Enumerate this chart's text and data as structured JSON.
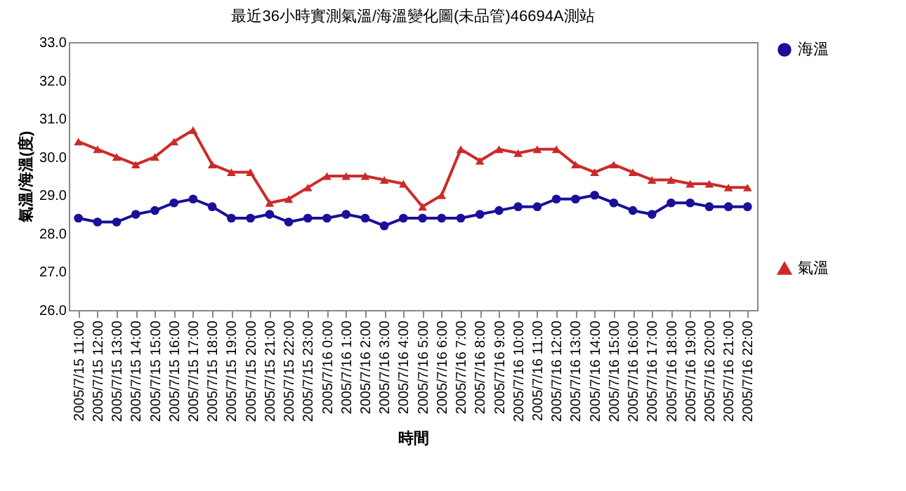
{
  "chart_data": {
    "type": "line",
    "title": "最近36小時實測氣溫/海溫變化圖(未品管)46694A測站",
    "xlabel": "時間",
    "ylabel": "氣溫/海溫(度)",
    "categories": [
      "2005/7/15 11:00",
      "2005/7/15 12:00",
      "2005/7/15 13:00",
      "2005/7/15 14:00",
      "2005/7/15 15:00",
      "2005/7/15 16:00",
      "2005/7/15 17:00",
      "2005/7/15 18:00",
      "2005/7/15 19:00",
      "2005/7/15 20:00",
      "2005/7/15 21:00",
      "2005/7/15 22:00",
      "2005/7/15 23:00",
      "2005/7/16 0:00",
      "2005/7/16 1:00",
      "2005/7/16 2:00",
      "2005/7/16 3:00",
      "2005/7/16 4:00",
      "2005/7/16 5:00",
      "2005/7/16 6:00",
      "2005/7/16 7:00",
      "2005/7/16 8:00",
      "2005/7/16 9:00",
      "2005/7/16 10:00",
      "2005/7/16 11:00",
      "2005/7/16 12:00",
      "2005/7/16 13:00",
      "2005/7/16 14:00",
      "2005/7/16 15:00",
      "2005/7/16 16:00",
      "2005/7/16 17:00",
      "2005/7/16 18:00",
      "2005/7/16 19:00",
      "2005/7/16 20:00",
      "2005/7/16 21:00",
      "2005/7/16 22:00"
    ],
    "series": [
      {
        "name": "海溫",
        "color": "#1a0f99",
        "marker": "circle",
        "values": [
          28.4,
          28.3,
          28.3,
          28.5,
          28.6,
          28.8,
          28.9,
          28.7,
          28.4,
          28.4,
          28.5,
          28.3,
          28.4,
          28.4,
          28.5,
          28.4,
          28.2,
          28.4,
          28.4,
          28.4,
          28.4,
          28.5,
          28.6,
          28.7,
          28.7,
          28.9,
          28.9,
          29.0,
          28.8,
          28.6,
          28.5,
          28.8,
          28.8,
          28.7,
          28.7,
          28.7
        ]
      },
      {
        "name": "氣溫",
        "color": "#cc2a2a",
        "marker": "triangle",
        "values": [
          30.4,
          30.2,
          30.0,
          29.8,
          30.0,
          30.4,
          30.7,
          29.8,
          29.6,
          29.6,
          28.8,
          28.9,
          29.2,
          29.5,
          29.5,
          29.5,
          29.4,
          29.3,
          28.7,
          29.0,
          30.2,
          29.9,
          30.2,
          30.1,
          30.2,
          30.2,
          29.8,
          29.6,
          29.8,
          29.6,
          29.4,
          29.4,
          29.3,
          29.3,
          29.2,
          29.2
        ]
      }
    ],
    "ylim": [
      26,
      33
    ],
    "yticks": [
      {
        "value": 26,
        "label": "26.0"
      },
      {
        "value": 27,
        "label": "27.0"
      },
      {
        "value": 28,
        "label": "28.0"
      },
      {
        "value": 29,
        "label": "29.0"
      },
      {
        "value": 30,
        "label": "30.0"
      },
      {
        "value": 31,
        "label": "31.0"
      },
      {
        "value": 32,
        "label": "32.0"
      },
      {
        "value": 33,
        "label": "33.0"
      }
    ],
    "grid": false,
    "legend": "right",
    "line_style": "solid"
  }
}
